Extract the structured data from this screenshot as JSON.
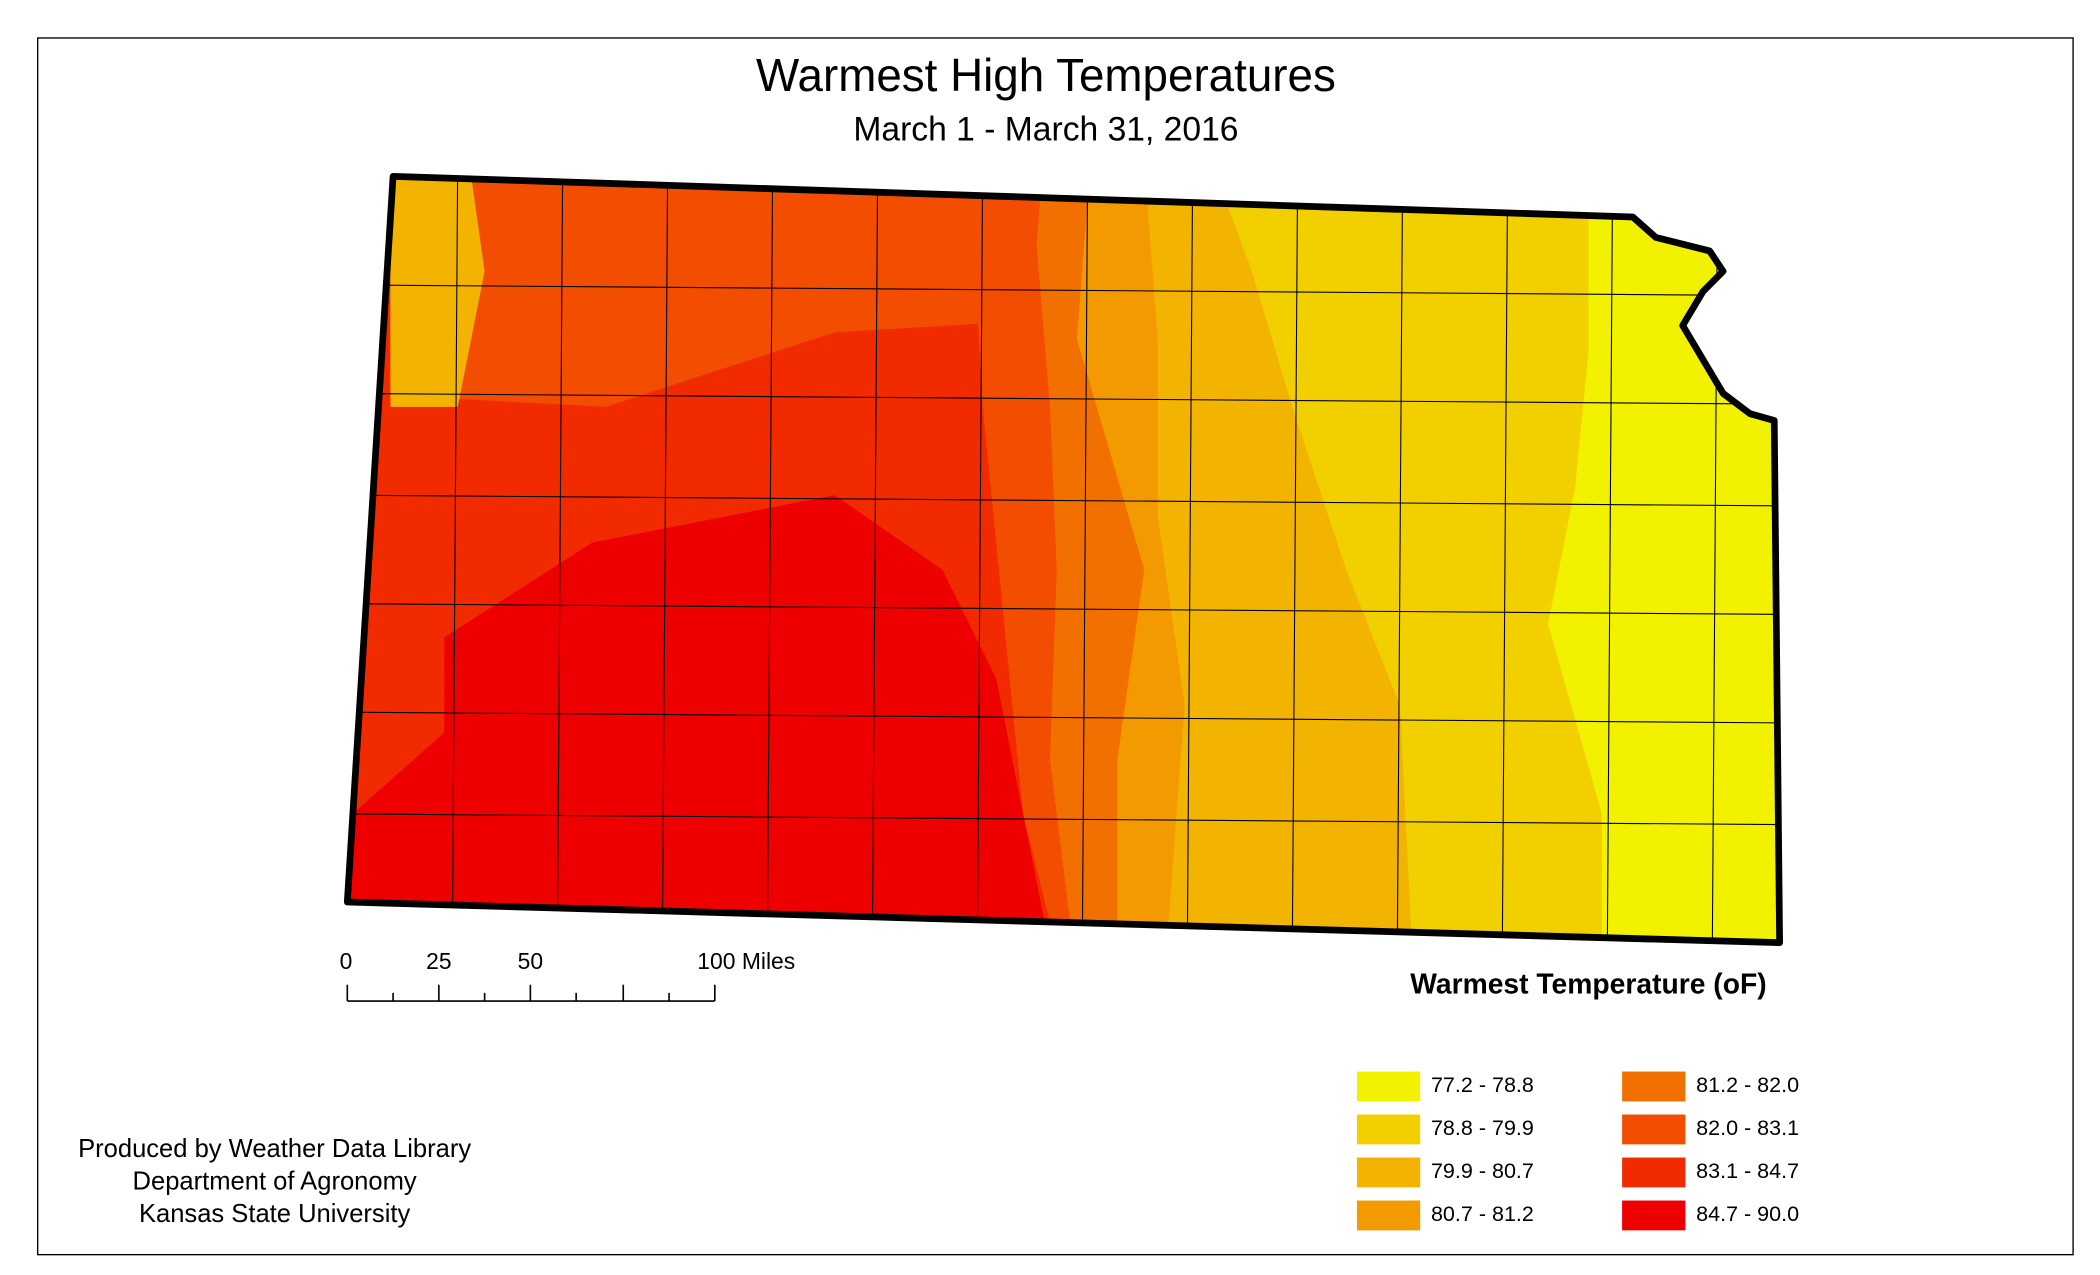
{
  "title": "Warmest High Temperatures",
  "subtitle": "March 1 - March 31, 2016",
  "scale_bar": {
    "labels": [
      "0",
      "25",
      "50",
      "100 Miles"
    ]
  },
  "legend": {
    "title": "Warmest Temperature (oF)",
    "items": [
      {
        "label": "77.2 - 78.8",
        "color": "#f2f200"
      },
      {
        "label": "78.8 - 79.9",
        "color": "#f2d000"
      },
      {
        "label": "79.9 - 80.7",
        "color": "#f2b400"
      },
      {
        "label": "80.7 - 81.2",
        "color": "#f29a00"
      },
      {
        "label": "81.2 - 82.0",
        "color": "#f27000"
      },
      {
        "label": "82.0 - 83.1",
        "color": "#f24d00"
      },
      {
        "label": "83.1 - 84.7",
        "color": "#f22a00"
      },
      {
        "label": "84.7 - 90.0",
        "color": "#ee0000"
      }
    ]
  },
  "credits": [
    "Produced by Weather Data Library",
    "Department of Agronomy",
    "Kansas State University"
  ]
}
